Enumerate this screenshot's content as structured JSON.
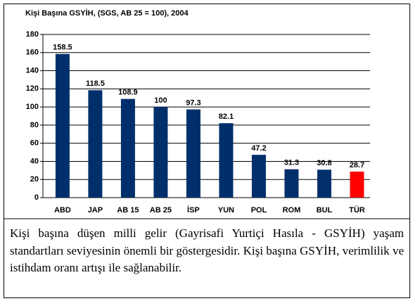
{
  "chart_data": {
    "type": "bar",
    "title": "Kişi Başına GSYİH, (SGS, AB 25 = 100), 2004",
    "categories": [
      "ABD",
      "JAP",
      "AB 15",
      "AB 25",
      "İSP",
      "YUN",
      "POL",
      "ROM",
      "BUL",
      "TÜR"
    ],
    "values": [
      158.5,
      118.5,
      108.9,
      100,
      97.3,
      82.1,
      47.2,
      31.3,
      30.8,
      28.7
    ],
    "colors": [
      "#002f6c",
      "#002f6c",
      "#002f6c",
      "#002f6c",
      "#002f6c",
      "#002f6c",
      "#002f6c",
      "#002f6c",
      "#002f6c",
      "#ff0000"
    ],
    "ylim": [
      0,
      180
    ],
    "yticks": [
      0,
      20,
      40,
      60,
      80,
      100,
      120,
      140,
      160,
      180
    ],
    "grid": true
  },
  "caption": "Kişi başına düşen milli gelir (Gayrisafi Yurtiçi Hasıla - GSYİH) yaşam standartları seviyesinin önemli bir göstergesidir. Kişi başına GSYİH, verimlilik ve istihdam oranı artışı ile sağlanabilir."
}
